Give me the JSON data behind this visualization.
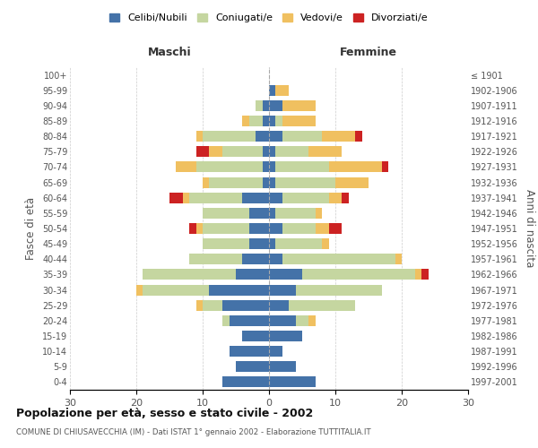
{
  "age_groups": [
    "0-4",
    "5-9",
    "10-14",
    "15-19",
    "20-24",
    "25-29",
    "30-34",
    "35-39",
    "40-44",
    "45-49",
    "50-54",
    "55-59",
    "60-64",
    "65-69",
    "70-74",
    "75-79",
    "80-84",
    "85-89",
    "90-94",
    "95-99",
    "100+"
  ],
  "birth_years": [
    "1997-2001",
    "1992-1996",
    "1987-1991",
    "1982-1986",
    "1977-1981",
    "1972-1976",
    "1967-1971",
    "1962-1966",
    "1957-1961",
    "1952-1956",
    "1947-1951",
    "1942-1946",
    "1937-1941",
    "1932-1936",
    "1927-1931",
    "1922-1926",
    "1917-1921",
    "1912-1916",
    "1907-1911",
    "1902-1906",
    "≤ 1901"
  ],
  "maschi": {
    "celibi": [
      7,
      5,
      6,
      4,
      6,
      7,
      9,
      5,
      4,
      3,
      3,
      3,
      4,
      1,
      1,
      1,
      2,
      1,
      1,
      0,
      0
    ],
    "coniugati": [
      0,
      0,
      0,
      0,
      1,
      3,
      10,
      14,
      8,
      7,
      7,
      7,
      8,
      8,
      10,
      6,
      8,
      2,
      1,
      0,
      0
    ],
    "vedovi": [
      0,
      0,
      0,
      0,
      0,
      1,
      1,
      0,
      0,
      0,
      1,
      0,
      1,
      1,
      3,
      2,
      1,
      1,
      0,
      0,
      0
    ],
    "divorziati": [
      0,
      0,
      0,
      0,
      0,
      0,
      0,
      0,
      0,
      0,
      1,
      0,
      2,
      0,
      0,
      2,
      0,
      0,
      0,
      0,
      0
    ]
  },
  "femmine": {
    "nubili": [
      7,
      4,
      2,
      5,
      4,
      3,
      4,
      5,
      2,
      1,
      2,
      1,
      2,
      1,
      1,
      1,
      2,
      1,
      2,
      1,
      0
    ],
    "coniugate": [
      0,
      0,
      0,
      0,
      2,
      10,
      13,
      17,
      17,
      7,
      5,
      6,
      7,
      9,
      8,
      5,
      6,
      1,
      0,
      0,
      0
    ],
    "vedove": [
      0,
      0,
      0,
      0,
      1,
      0,
      0,
      1,
      1,
      1,
      2,
      1,
      2,
      5,
      8,
      5,
      5,
      5,
      5,
      2,
      0
    ],
    "divorziate": [
      0,
      0,
      0,
      0,
      0,
      0,
      0,
      1,
      0,
      0,
      2,
      0,
      1,
      0,
      1,
      0,
      1,
      0,
      0,
      0,
      0
    ]
  },
  "colors": {
    "celibi": "#4472a8",
    "coniugati": "#c5d6a0",
    "vedovi": "#f0c060",
    "divorziati": "#cc2222"
  },
  "xlim": 30,
  "title": "Popolazione per età, sesso e stato civile - 2002",
  "subtitle": "COMUNE DI CHIUSAVECCHIA (IM) - Dati ISTAT 1° gennaio 2002 - Elaborazione TUTTITALIA.IT",
  "ylabel_left": "Fasce di età",
  "ylabel_right": "Anni di nascita",
  "xlabel_maschi": "Maschi",
  "xlabel_femmine": "Femmine",
  "legend_labels": [
    "Celibi/Nubili",
    "Coniugati/e",
    "Vedovi/e",
    "Divorziati/e"
  ],
  "background_color": "#ffffff",
  "grid_color": "#cccccc"
}
